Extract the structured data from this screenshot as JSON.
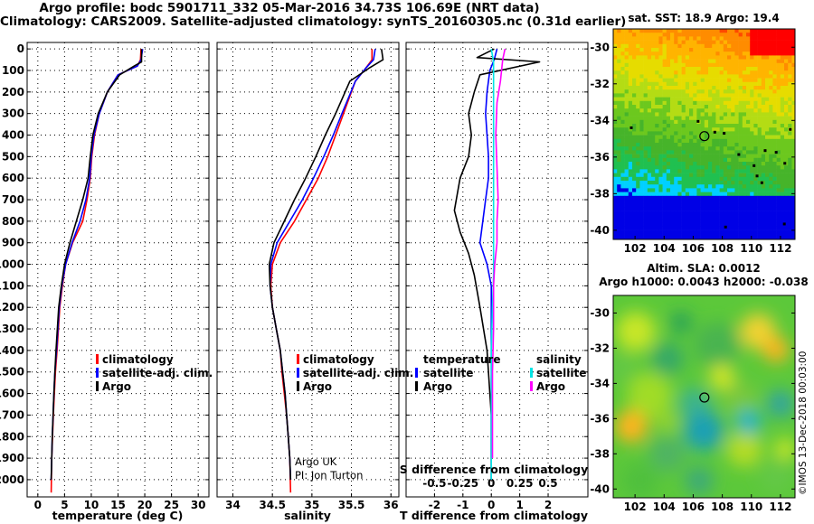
{
  "title_line1": "Argo profile: bodc 5901711_332 05-Mar-2016 34.73S 106.69E (NRT data)",
  "title_line2": "Climatology: CARS2009. Satellite-adjusted climatology: synTS_20160305.nc (0.31d earlier)",
  "colors": {
    "climatology": "#ff0000",
    "satellite": "#0000ff",
    "argo": "#000000",
    "sat_salinity": "#00e5e5",
    "argo_salinity": "#ff00ff"
  },
  "depth_ticks": [
    "0",
    "100",
    "200",
    "300",
    "400",
    "500",
    "600",
    "700",
    "800",
    "900",
    "1000",
    "1100",
    "1200",
    "1300",
    "1400",
    "1500",
    "1600",
    "1700",
    "1800",
    "1900",
    "2000"
  ],
  "legend": {
    "climatology": "climatology",
    "satellite": "satellite-adj. clim.",
    "argo": "Argo"
  },
  "diff_legend": {
    "temp_header": "temperature",
    "sal_header": "salinity",
    "satellite": "satellite",
    "argo": "Argo"
  },
  "credit": {
    "line1": "Argo UK",
    "line2": "PI: Jon Turton"
  },
  "sst_title": "sat. SST: 18.9 Argo: 19.4",
  "sla_title1": "Altim. SLA: 0.0012",
  "sla_title2": "Argo h1000: 0.0043 h2000: -0.038",
  "watermark": "©IMOS 13-Dec-2018 00:03:00",
  "map_lat_ticks": [
    "-30",
    "-32",
    "-34",
    "-36",
    "-38",
    "-40"
  ],
  "map_lon_ticks": [
    "102",
    "104",
    "106",
    "108",
    "110",
    "112"
  ],
  "chart_data": [
    {
      "type": "line",
      "xlabel": "temperature (deg C)",
      "ylabel": "",
      "xlim": [
        -2,
        32
      ],
      "ylim": [
        2080,
        -30
      ],
      "xticks": [
        "0",
        "5",
        "10",
        "15",
        "20",
        "25",
        "30"
      ],
      "series": [
        {
          "name": "climatology",
          "x": [
            19.3,
            19.2,
            18.6,
            15,
            13,
            11.5,
            10.6,
            10.1,
            9.8,
            9.2,
            8.4,
            6.5,
            5.2,
            4.6,
            4.1,
            3.6,
            3.3,
            3.1,
            2.9,
            2.75,
            2.6,
            2.5
          ],
          "y": [
            0,
            50,
            80,
            120,
            200,
            300,
            400,
            500,
            600,
            700,
            800,
            900,
            1000,
            1100,
            1200,
            1400,
            1500,
            1600,
            1700,
            1800,
            1900,
            2060
          ]
        },
        {
          "name": "satellite-adj. clim.",
          "x": [
            19.6,
            19.3,
            18.6,
            15,
            13,
            11.5,
            10.5,
            10,
            9.7,
            9,
            7.9,
            6.4,
            5.2,
            4.5,
            4,
            3.5,
            3.2,
            3,
            2.85,
            2.7,
            2.6,
            2.5
          ],
          "y": [
            0,
            50,
            80,
            120,
            200,
            300,
            400,
            500,
            600,
            700,
            800,
            900,
            1000,
            1100,
            1200,
            1400,
            1500,
            1600,
            1700,
            1800,
            1900,
            2000
          ]
        },
        {
          "name": "Argo",
          "x": [
            19.4,
            19.4,
            18,
            15.3,
            13,
            11.3,
            10.3,
            9.8,
            9.4,
            8.4,
            7.2,
            6,
            5,
            4.4,
            3.9,
            3.4,
            3.2,
            3,
            2.85,
            2.7,
            2.6,
            2.5
          ],
          "y": [
            0,
            60,
            80,
            120,
            200,
            300,
            400,
            500,
            600,
            700,
            800,
            900,
            1000,
            1100,
            1200,
            1400,
            1500,
            1600,
            1700,
            1800,
            1900,
            2000
          ]
        }
      ]
    },
    {
      "type": "line",
      "xlabel": "salinity",
      "ylabel": "",
      "xlim": [
        33.8,
        36.1
      ],
      "ylim": [
        2080,
        -30
      ],
      "xticks": [
        "34",
        "34.5",
        "35",
        "35.5",
        "36"
      ],
      "series": [
        {
          "name": "climatology",
          "x": [
            35.76,
            35.76,
            35.68,
            35.55,
            35.4,
            35.3,
            35.2,
            35.08,
            34.93,
            34.78,
            34.6,
            34.5,
            34.48,
            34.5,
            34.55,
            34.6,
            34.62,
            34.65,
            34.68,
            34.7,
            34.72,
            34.73
          ],
          "y": [
            0,
            50,
            90,
            150,
            300,
            400,
            500,
            600,
            700,
            800,
            900,
            1000,
            1100,
            1200,
            1300,
            1400,
            1500,
            1600,
            1700,
            1800,
            1900,
            2060
          ]
        },
        {
          "name": "satellite-adj. clim.",
          "x": [
            35.8,
            35.78,
            35.68,
            35.55,
            35.38,
            35.27,
            35.15,
            35.02,
            34.88,
            34.72,
            34.56,
            34.48,
            34.47,
            34.5,
            34.55,
            34.6,
            34.63,
            34.66,
            34.68,
            34.7,
            34.72,
            34.73
          ],
          "y": [
            0,
            50,
            90,
            150,
            300,
            400,
            500,
            600,
            700,
            800,
            900,
            1000,
            1100,
            1200,
            1300,
            1400,
            1500,
            1600,
            1700,
            1800,
            1900,
            2000
          ]
        },
        {
          "name": "Argo",
          "x": [
            35.88,
            35.9,
            35.72,
            35.48,
            35.3,
            35.17,
            35.05,
            34.92,
            34.78,
            34.65,
            34.52,
            34.46,
            34.47,
            34.5,
            34.55,
            34.6,
            34.63,
            34.66,
            34.68,
            34.7,
            34.72,
            34.73
          ],
          "y": [
            0,
            50,
            90,
            150,
            300,
            400,
            500,
            600,
            700,
            800,
            900,
            1000,
            1100,
            1200,
            1300,
            1400,
            1500,
            1600,
            1700,
            1800,
            1900,
            2000
          ]
        }
      ]
    },
    {
      "type": "line",
      "xlabel": "T difference from climatology",
      "x2label": "S difference from climatology",
      "ylabel": "",
      "xlim": [
        -3,
        3.4
      ],
      "ylim": [
        2080,
        -30
      ],
      "xticks": [
        "-2",
        "-1",
        "0",
        "1",
        "2"
      ],
      "x2ticks": [
        "-0.5",
        "-0.25",
        "0",
        "0.25",
        "0.5"
      ],
      "x2lim": [
        -0.75,
        0.85
      ],
      "series": [
        {
          "name": "temperature satellite",
          "x": [
            0.2,
            0.1,
            -0.05,
            -0.15,
            -0.2,
            -0.15,
            -0.1,
            -0.1,
            -0.2,
            -0.3,
            -0.4,
            -0.15,
            0,
            0,
            0,
            0,
            0
          ],
          "y": [
            0,
            50,
            100,
            200,
            300,
            400,
            500,
            600,
            700,
            800,
            900,
            1000,
            1100,
            1300,
            1500,
            1800,
            2000
          ]
        },
        {
          "name": "temperature Argo",
          "x": [
            0.1,
            -0.5,
            1.7,
            -0.4,
            -0.6,
            -0.8,
            -0.7,
            -0.8,
            -1.1,
            -1.3,
            -1.1,
            -0.8,
            -0.6,
            -0.4,
            -0.15,
            0,
            0
          ],
          "y": [
            0,
            40,
            60,
            120,
            200,
            300,
            400,
            500,
            600,
            750,
            850,
            950,
            1050,
            1200,
            1400,
            1700,
            2000
          ]
        },
        {
          "name": "salinity satellite",
          "x": [
            0.0,
            0.02,
            0.02,
            0.02,
            0.02,
            0.02,
            0.02,
            0.02,
            0.02,
            0.01,
            0,
            0,
            0,
            0
          ],
          "y": [
            0,
            60,
            150,
            300,
            450,
            600,
            750,
            900,
            1050,
            1200,
            1400,
            1600,
            1800,
            2000
          ]
        },
        {
          "name": "salinity Argo",
          "x": [
            0.12,
            0.1,
            0.08,
            0.05,
            0.04,
            0.05,
            0.06,
            0.05,
            0.05,
            0.03,
            0.02,
            0.02,
            0.01,
            0.01,
            0.01
          ],
          "y": [
            0,
            50,
            150,
            250,
            400,
            550,
            700,
            800,
            900,
            1000,
            1100,
            1300,
            1500,
            1700,
            1900
          ]
        }
      ]
    },
    {
      "type": "heatmap",
      "title": "sat. SST: 18.9 Argo: 19.4",
      "xlim": [
        100.5,
        113
      ],
      "ylim": [
        -40.5,
        -29
      ],
      "profile_marker": {
        "lon": 106.69,
        "lat": -34.73
      }
    },
    {
      "type": "heatmap",
      "title": "Altim. SLA: 0.0012",
      "subtitle": "Argo h1000: 0.0043 h2000: -0.038",
      "xlim": [
        100.5,
        113
      ],
      "ylim": [
        -40.5,
        -29
      ],
      "profile_marker": {
        "lon": 106.69,
        "lat": -34.73
      }
    }
  ]
}
